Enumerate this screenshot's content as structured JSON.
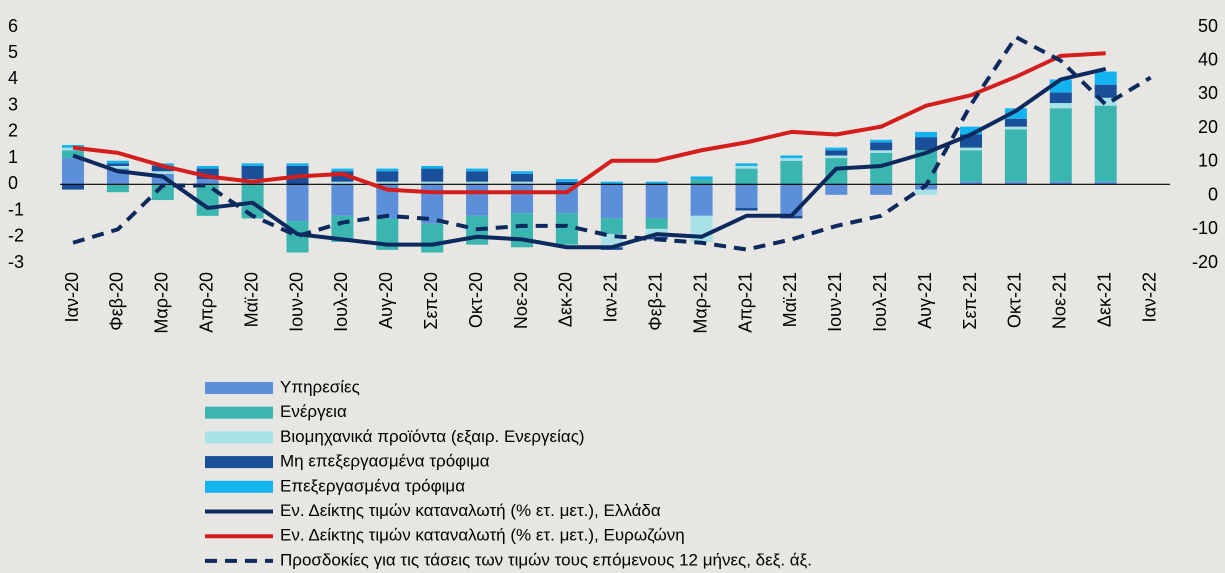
{
  "chart_data": {
    "type": "bar_line",
    "categories": [
      "Ιαν-20",
      "Φεβ-20",
      "Μαρ-20",
      "Απρ-20",
      "Μαϊ-20",
      "Ιουν-20",
      "Ιουλ-20",
      "Αυγ-20",
      "Σεπ-20",
      "Οκτ-20",
      "Νοε-20",
      "Δεκ-20",
      "Ιαν-21",
      "Φεβ-21",
      "Μαρ-21",
      "Απρ-21",
      "Μαϊ-21",
      "Ιουν-21",
      "Ιουλ-21",
      "Αυγ-21",
      "Σεπ-21",
      "Οκτ-21",
      "Νοε-21",
      "Δεκ-21",
      "Ιαν-22"
    ],
    "series": [
      {
        "name": "Υπηρεσίες",
        "kind": "bar",
        "color": "#5b8fd9",
        "values": [
          1.0,
          0.6,
          0.4,
          0.2,
          0.1,
          -1.4,
          -1.2,
          -1.3,
          -1.5,
          -1.2,
          -1.1,
          -1.1,
          -1.3,
          -1.3,
          -1.2,
          -0.9,
          -1.2,
          -0.4,
          -0.4,
          -0.2,
          0.1,
          0.1,
          0.1,
          0.1,
          null
        ]
      },
      {
        "name": "Ενέργεια",
        "kind": "bar",
        "color": "#3ab5b0",
        "values": [
          0.3,
          -0.3,
          -0.6,
          -1.2,
          -1.3,
          -1.2,
          -1.0,
          -1.2,
          -1.1,
          -1.1,
          -1.3,
          -1.2,
          -0.6,
          -0.4,
          0.2,
          0.6,
          0.9,
          1.0,
          1.2,
          1.3,
          1.2,
          2.0,
          2.8,
          2.9,
          null
        ]
      },
      {
        "name": "Βιομηχανικά προϊόντα (εξαιρ. Ενεργείας)",
        "kind": "bar",
        "color": "#a8e1e6",
        "values": [
          0.1,
          0.1,
          0.1,
          0.0,
          0.1,
          0.0,
          0.1,
          0.1,
          0.1,
          0.1,
          0.1,
          0.0,
          -0.5,
          -0.3,
          -1.0,
          0.1,
          0.1,
          0.1,
          0.1,
          -0.2,
          0.1,
          0.1,
          0.2,
          0.3,
          null
        ]
      },
      {
        "name": "Μη επεξεργασμένα τρόφιμα",
        "kind": "bar",
        "color": "#1a4f99",
        "values": [
          -0.2,
          0.1,
          0.2,
          0.4,
          0.5,
          0.7,
          0.4,
          0.4,
          0.5,
          0.4,
          0.3,
          0.1,
          -0.1,
          -0.1,
          0.0,
          -0.1,
          -0.1,
          0.2,
          0.3,
          0.5,
          0.5,
          0.3,
          0.4,
          0.5,
          null
        ]
      },
      {
        "name": "Επεξεργασμένα τρόφιμα",
        "kind": "bar",
        "color": "#13b3ef",
        "values": [
          0.1,
          0.1,
          0.1,
          0.1,
          0.1,
          0.1,
          0.1,
          0.1,
          0.1,
          0.1,
          0.1,
          0.1,
          0.1,
          0.1,
          0.1,
          0.1,
          0.1,
          0.1,
          0.1,
          0.2,
          0.3,
          0.4,
          0.5,
          0.5,
          null
        ]
      },
      {
        "name": "Εν. Δείκτης τιμών καταναλωτή (% ετ. μετ.), Ελλάδα",
        "kind": "line",
        "color": "#0d2a5e",
        "values": [
          1.1,
          0.5,
          0.3,
          -0.9,
          -0.7,
          -1.9,
          -2.1,
          -2.3,
          -2.3,
          -2.0,
          -2.1,
          -2.4,
          -2.4,
          -1.9,
          -2.0,
          -1.2,
          -1.2,
          0.6,
          0.7,
          1.2,
          1.9,
          2.8,
          4.0,
          4.4,
          null
        ]
      },
      {
        "name": "Εν. Δείκτης τιμών καταναλωτή (% ετ. μετ.), Ευρωζώνη",
        "kind": "line",
        "color": "#d41e1e",
        "values": [
          1.4,
          1.2,
          0.7,
          0.3,
          0.1,
          0.3,
          0.4,
          -0.2,
          -0.3,
          -0.3,
          -0.3,
          -0.3,
          0.9,
          0.9,
          1.3,
          1.6,
          2.0,
          1.9,
          2.2,
          3.0,
          3.4,
          4.1,
          4.9,
          5.0,
          null
        ]
      },
      {
        "name": "Προσδοκίες για τις τάσεις των τιμών τους επόμενους 12 μήνες, δεξ. άξ.",
        "kind": "line",
        "axis": "y2",
        "dashed": true,
        "color": "#0d2a5e",
        "values": [
          -14,
          -10,
          3,
          3,
          -6,
          -12,
          -8,
          -6,
          -7,
          -10,
          -9,
          -9,
          -12,
          -13,
          -14,
          -16,
          -13,
          -9,
          -6,
          3,
          27,
          47,
          40,
          27,
          35
        ]
      }
    ],
    "ylim": [
      -3,
      6
    ],
    "yticks": [
      -3,
      -2,
      -1,
      0,
      1,
      2,
      3,
      4,
      5,
      6
    ],
    "y2lim": [
      -20,
      50
    ],
    "y2ticks": [
      -20,
      -10,
      0,
      10,
      20,
      30,
      40,
      50
    ],
    "legend": "bottom-left"
  }
}
